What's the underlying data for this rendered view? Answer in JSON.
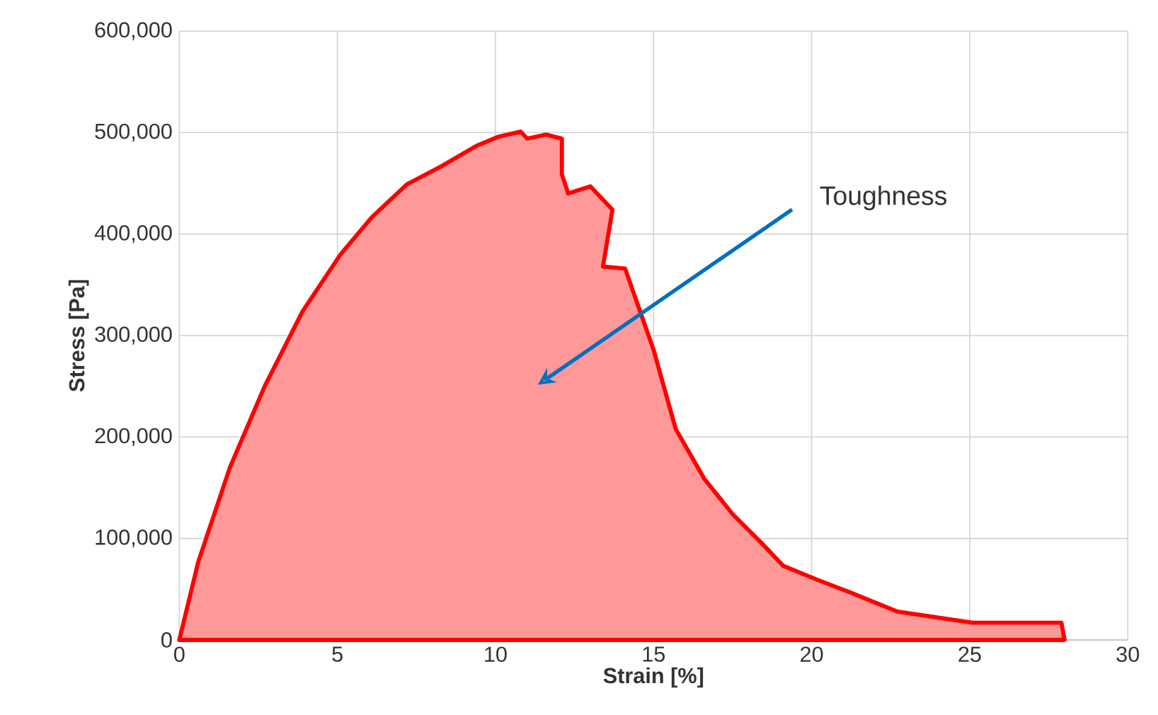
{
  "chart_data": {
    "type": "area",
    "xlabel": "Strain [%]",
    "ylabel": "Stress [Pa]",
    "x": [
      0,
      0.6,
      1.6,
      2.7,
      3.9,
      5.1,
      6.1,
      7.2,
      8.3,
      9.4,
      10.1,
      10.8,
      11.0,
      11.6,
      12.1,
      12.1,
      12.3,
      13.0,
      13.7,
      13.4,
      14.1,
      15.0,
      15.7,
      16.6,
      17.5,
      18.4,
      19.1,
      20.2,
      21.2,
      22.7,
      25.1,
      27.9,
      28.0
    ],
    "series": [
      {
        "color": "#ff0000",
        "values": [
          0,
          77000,
          170000,
          250000,
          324000,
          380000,
          417000,
          449000,
          467000,
          487000,
          496000,
          501000,
          494000,
          498000,
          494000,
          459000,
          440000,
          447000,
          424000,
          368000,
          366000,
          286000,
          208000,
          159000,
          124000,
          96000,
          73000,
          59000,
          47000,
          28000,
          17000,
          17000,
          0
        ]
      }
    ],
    "xlim": [
      0,
      30
    ],
    "xticks": [
      0,
      5,
      10,
      15,
      20,
      25,
      30
    ],
    "ylim": [
      0,
      600000
    ],
    "yticks": [
      {
        "value": 0,
        "label": "0"
      },
      {
        "value": 100000,
        "label": "100,000"
      },
      {
        "value": 200000,
        "label": "200,000"
      },
      {
        "value": 300000,
        "label": "300,000"
      },
      {
        "value": 400000,
        "label": "400,000"
      },
      {
        "value": 500000,
        "label": "500,000"
      },
      {
        "value": 600000,
        "label": "600,000"
      }
    ],
    "grid": true,
    "annotations": [
      "Toughness"
    ]
  }
}
